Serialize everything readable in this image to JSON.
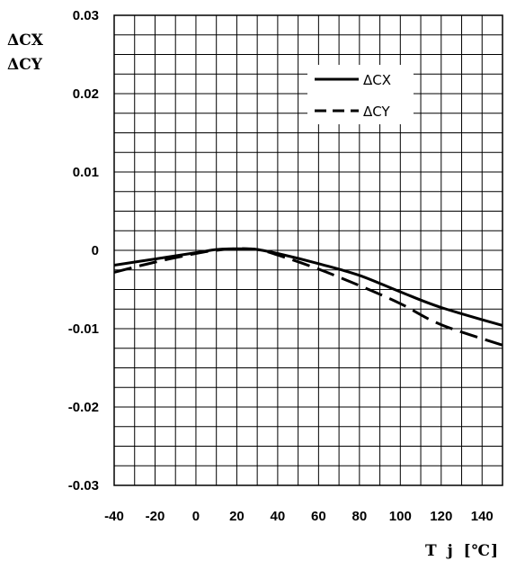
{
  "chart_data": {
    "type": "line",
    "title": "",
    "xlabel": "T j [℃]",
    "ylabel": [
      "ΔCX",
      "ΔCY"
    ],
    "xlim": [
      -40,
      150
    ],
    "ylim": [
      -0.03,
      0.03
    ],
    "x_ticks": [
      "-40",
      "-20",
      "0",
      "20",
      "40",
      "60",
      "80",
      "100",
      "120",
      "140"
    ],
    "y_ticks": [
      "0.03",
      "0.02",
      "0.01",
      "0",
      "-0.01",
      "-0.02",
      "-0.03"
    ],
    "grid": true,
    "legend_position": "top-right",
    "series": [
      {
        "name": "ΔCX",
        "style": "solid",
        "x": [
          -40,
          -20,
          0,
          10,
          20,
          30,
          40,
          60,
          80,
          100,
          120,
          150
        ],
        "y": [
          -0.0019,
          -0.0011,
          -0.0003,
          0.0001,
          0.0002,
          0.0001,
          -0.0004,
          -0.0017,
          -0.0032,
          -0.0053,
          -0.0073,
          -0.0096
        ]
      },
      {
        "name": "ΔCY",
        "style": "dashed",
        "x": [
          -40,
          -20,
          0,
          10,
          20,
          30,
          40,
          60,
          80,
          100,
          120,
          150
        ],
        "y": [
          -0.0028,
          -0.0015,
          -0.0004,
          0.0,
          0.0002,
          0.0001,
          -0.0006,
          -0.0024,
          -0.0045,
          -0.0068,
          -0.0095,
          -0.0121
        ]
      }
    ]
  }
}
